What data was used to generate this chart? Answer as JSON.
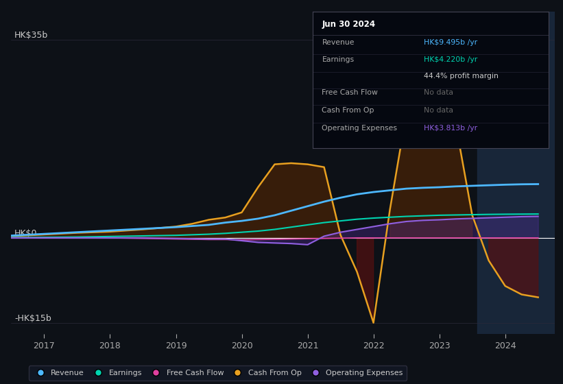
{
  "background_color": "#0d1117",
  "plot_bg_color": "#0d1117",
  "grid_color": "#2a2a3a",
  "zero_line_color": "#ffffff",
  "ylabel_top": "HK$35b",
  "ylabel_zero": "HK$0",
  "ylabel_bot": "-HK$15b",
  "xlim": [
    2016.5,
    2024.75
  ],
  "ylim": [
    -17,
    40
  ],
  "xticks": [
    2017,
    2018,
    2019,
    2020,
    2021,
    2022,
    2023,
    2024
  ],
  "shade_right_start": 2023.58,
  "shade_right_color": "#1a2a40",
  "legend": [
    {
      "label": "Revenue",
      "color": "#4db8ff",
      "type": "circle"
    },
    {
      "label": "Earnings",
      "color": "#00d4b0",
      "type": "circle"
    },
    {
      "label": "Free Cash Flow",
      "color": "#e040a0",
      "type": "circle"
    },
    {
      "label": "Cash From Op",
      "color": "#e8a020",
      "type": "circle"
    },
    {
      "label": "Operating Expenses",
      "color": "#9060e0",
      "type": "circle"
    }
  ],
  "info_box": {
    "title": "Jun 30 2024",
    "rows": [
      {
        "label": "Revenue",
        "value": "HK$9.495b /yr",
        "label_color": "#aaaaaa",
        "value_color": "#4db8ff"
      },
      {
        "label": "Earnings",
        "value": "HK$4.220b /yr",
        "label_color": "#aaaaaa",
        "value_color": "#00d4b0"
      },
      {
        "label": "",
        "value": "44.4% profit margin",
        "label_color": "#aaaaaa",
        "value_color": "#cccccc"
      },
      {
        "label": "Free Cash Flow",
        "value": "No data",
        "label_color": "#aaaaaa",
        "value_color": "#666666"
      },
      {
        "label": "Cash From Op",
        "value": "No data",
        "label_color": "#aaaaaa",
        "value_color": "#666666"
      },
      {
        "label": "Operating Expenses",
        "value": "HK$3.813b /yr",
        "label_color": "#aaaaaa",
        "value_color": "#9060e0"
      }
    ]
  },
  "series": {
    "x": [
      2016.5,
      2017.0,
      2017.5,
      2018.0,
      2018.5,
      2019.0,
      2019.25,
      2019.5,
      2019.75,
      2020.0,
      2020.25,
      2020.5,
      2020.75,
      2021.0,
      2021.25,
      2021.5,
      2021.75,
      2022.0,
      2022.25,
      2022.5,
      2022.75,
      2023.0,
      2023.25,
      2023.5,
      2023.75,
      2024.0,
      2024.25,
      2024.5
    ],
    "revenue": [
      0.4,
      0.7,
      1.0,
      1.3,
      1.6,
      1.9,
      2.1,
      2.3,
      2.7,
      3.0,
      3.4,
      4.0,
      4.8,
      5.6,
      6.4,
      7.1,
      7.7,
      8.1,
      8.4,
      8.7,
      8.85,
      8.95,
      9.1,
      9.2,
      9.3,
      9.4,
      9.47,
      9.5
    ],
    "earnings": [
      0.05,
      0.1,
      0.15,
      0.25,
      0.35,
      0.45,
      0.55,
      0.65,
      0.8,
      1.0,
      1.2,
      1.5,
      1.9,
      2.3,
      2.7,
      3.0,
      3.3,
      3.5,
      3.65,
      3.8,
      3.9,
      4.0,
      4.05,
      4.1,
      4.15,
      4.18,
      4.2,
      4.22
    ],
    "free_cash_flow": [
      0.0,
      0.0,
      0.0,
      0.0,
      -0.1,
      -0.2,
      -0.25,
      -0.3,
      -0.3,
      -0.35,
      -0.3,
      -0.25,
      -0.2,
      -0.15,
      -0.1,
      -0.05,
      0.0,
      0.0,
      0.0,
      0.0,
      0.0,
      0.0,
      0.0,
      0.0,
      0.0,
      0.0,
      0.0,
      0.0
    ],
    "cash_from_op": [
      0.3,
      0.6,
      0.9,
      1.1,
      1.5,
      2.0,
      2.5,
      3.2,
      3.6,
      4.5,
      9.0,
      13.0,
      13.2,
      13.0,
      12.5,
      0.5,
      -6.0,
      -15.0,
      5.0,
      22.0,
      32.0,
      34.0,
      20.0,
      4.0,
      -4.0,
      -8.5,
      -10.0,
      -10.5
    ],
    "op_expenses": [
      0.0,
      0.0,
      0.0,
      0.0,
      0.0,
      -0.1,
      -0.15,
      -0.2,
      -0.2,
      -0.5,
      -0.8,
      -0.9,
      -1.0,
      -1.2,
      0.3,
      1.0,
      1.5,
      2.0,
      2.5,
      2.9,
      3.1,
      3.2,
      3.35,
      3.45,
      3.55,
      3.65,
      3.75,
      3.8
    ]
  }
}
